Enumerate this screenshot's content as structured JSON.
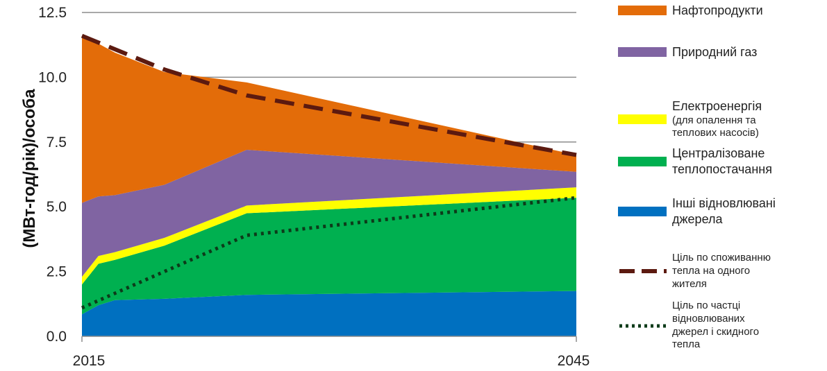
{
  "chart_data": {
    "type": "area",
    "stacked": true,
    "ylabel": "(МВт-год/рік)/особа",
    "xlabel": "",
    "x": [
      2015,
      2016,
      2017,
      2020,
      2025,
      2045
    ],
    "x_tick_labels": [
      "2015",
      "2045"
    ],
    "ylim": [
      0,
      12.5
    ],
    "yticks": [
      "0.0",
      "2.5",
      "5.0",
      "7.5",
      "10.0",
      "12.5"
    ],
    "grid": true,
    "legend_position": "right",
    "series": [
      {
        "name": "Інші відновлювані джерела",
        "color": "#0070C0",
        "values": [
          0.85,
          1.2,
          1.4,
          1.45,
          1.6,
          1.75
        ]
      },
      {
        "name": "Централізоване теплопостачання",
        "color": "#00B050",
        "values": [
          1.15,
          1.6,
          1.55,
          2.05,
          3.15,
          3.6
        ]
      },
      {
        "name": "Електроенергія (для опалення та теплових насосів)",
        "color": "#FFFF00",
        "values": [
          0.3,
          0.3,
          0.3,
          0.3,
          0.3,
          0.4
        ]
      },
      {
        "name": "Природний газ",
        "color": "#8064A2",
        "values": [
          2.85,
          2.3,
          2.2,
          2.05,
          2.15,
          0.6
        ]
      },
      {
        "name": "Нафтопродукти",
        "color": "#E36C09",
        "values": [
          6.45,
          5.9,
          5.5,
          4.35,
          2.6,
          0.65
        ]
      }
    ],
    "lines": [
      {
        "name": "Ціль по споживанню тепла на одного жителя",
        "style": "dashed",
        "color": "#5C1A10",
        "x": [
          2015,
          2020,
          2025,
          2045
        ],
        "values": [
          11.6,
          10.3,
          9.3,
          7.0
        ]
      },
      {
        "name": "Ціль по частці відновлюваних джерел і скидного тепла",
        "style": "dotted",
        "color": "#0D3B1A",
        "x": [
          2015,
          2025,
          2045
        ],
        "values": [
          1.1,
          3.9,
          5.35
        ]
      }
    ]
  },
  "legend": {
    "items": [
      {
        "lines": [
          "Нафтопродукти"
        ],
        "color": "#E36C09",
        "kind": "area",
        "size": "big"
      },
      {
        "lines": [
          "Природний газ"
        ],
        "color": "#8064A2",
        "kind": "area",
        "size": "big"
      },
      {
        "lines": [
          "Електроенергія",
          "(для опалення та",
          "теплових насосів)"
        ],
        "color": "#FFFF00",
        "kind": "area",
        "size": "mixed"
      },
      {
        "lines": [
          "Централізоване",
          "теплопостачання"
        ],
        "color": "#00B050",
        "kind": "area",
        "size": "big"
      },
      {
        "lines": [
          "Інші відновлювані",
          "джерела"
        ],
        "color": "#0070C0",
        "kind": "area",
        "size": "big"
      },
      {
        "lines": [
          "Ціль по споживанню",
          "тепла на одного",
          "жителя"
        ],
        "color": "#5C1A10",
        "kind": "dashed",
        "size": "small"
      },
      {
        "lines": [
          "Ціль по частці",
          "відновлюваних",
          "джерел і скидного",
          "тепла"
        ],
        "color": "#0D3B1A",
        "kind": "dotted",
        "size": "small"
      }
    ]
  }
}
